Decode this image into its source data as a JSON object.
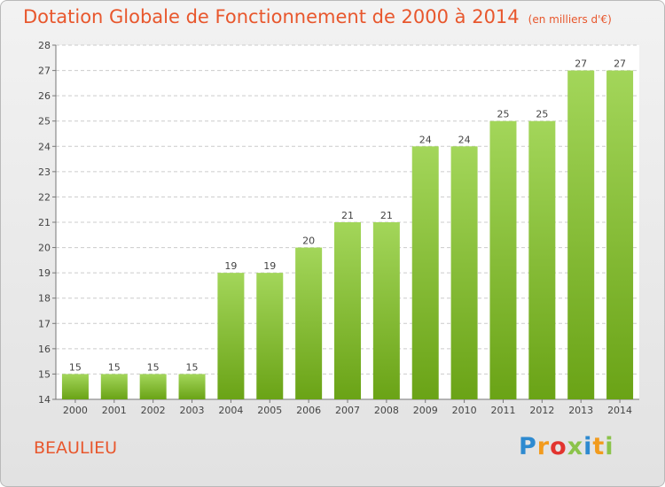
{
  "title": "Dotation Globale de Fonctionnement de 2000 à 2014",
  "title_unit": "(en milliers d'€)",
  "commune": "BEAULIEU",
  "logo": {
    "letters": [
      "P",
      "r",
      "o",
      "x",
      "i",
      "t",
      "i"
    ],
    "colors": [
      "#2e8ad0",
      "#f29b1d",
      "#e2342f",
      "#8bc34a",
      "#2e8ad0",
      "#f29b1d",
      "#8bc34a"
    ]
  },
  "chart_data": {
    "type": "bar",
    "title": "Dotation Globale de Fonctionnement de 2000 à 2014",
    "ylabel": "",
    "xlabel": "",
    "categories": [
      "2000",
      "2001",
      "2002",
      "2003",
      "2004",
      "2005",
      "2006",
      "2007",
      "2008",
      "2009",
      "2010",
      "2011",
      "2012",
      "2013",
      "2014"
    ],
    "values": [
      15,
      15,
      15,
      15,
      19,
      19,
      20,
      21,
      21,
      24,
      24,
      25,
      25,
      27,
      27
    ],
    "ylim": [
      14,
      28
    ],
    "yticks": [
      14,
      15,
      16,
      17,
      18,
      19,
      20,
      21,
      22,
      23,
      24,
      25,
      26,
      27,
      28
    ],
    "grid": true,
    "bar_color": "#8cc63f"
  }
}
